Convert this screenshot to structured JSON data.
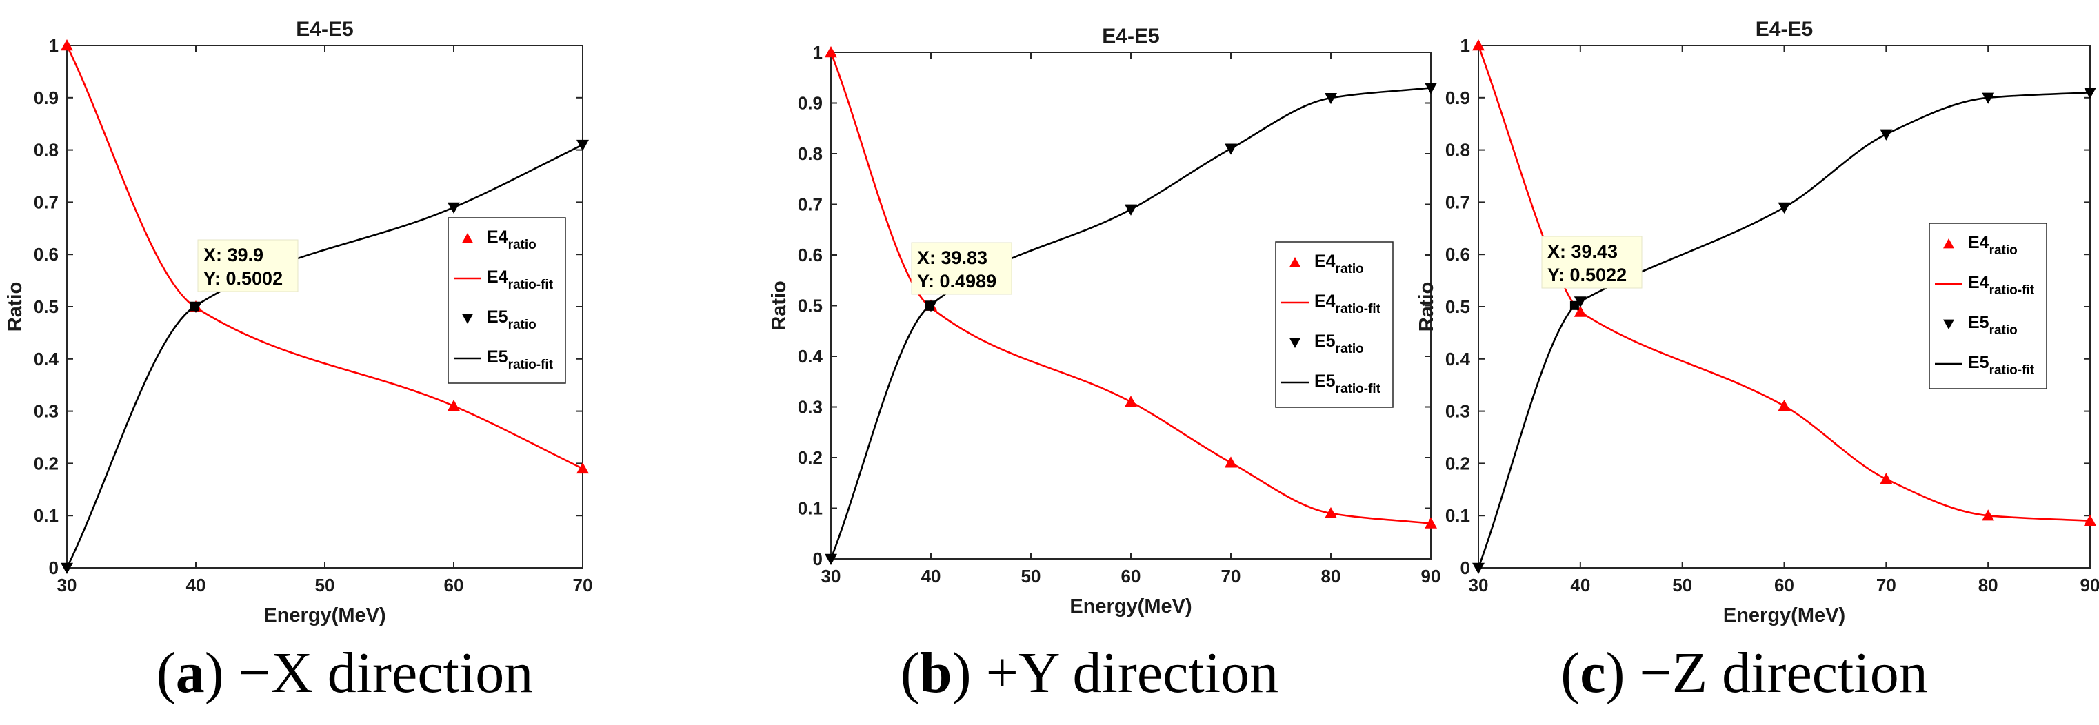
{
  "colors": {
    "e4": "#ff0000",
    "e5": "#000000",
    "tooltip_bg": "#ffffe1"
  },
  "legend": [
    {
      "base": "E4",
      "sub": "ratio",
      "kind": "marker",
      "series": "e4"
    },
    {
      "base": "E4",
      "sub": "ratio-fit",
      "kind": "line",
      "series": "e4"
    },
    {
      "base": "E5",
      "sub": "ratio",
      "kind": "marker",
      "series": "e5"
    },
    {
      "base": "E5",
      "sub": "ratio-fit",
      "kind": "line",
      "series": "e5"
    }
  ],
  "captions": [
    {
      "letter": "a",
      "text": " −X direction"
    },
    {
      "letter": "b",
      "text": " +Y direction"
    },
    {
      "letter": "c",
      "text": " −Z direction"
    }
  ],
  "chart_data": [
    {
      "type": "line",
      "title": "E4-E5",
      "xlabel": "Energy(MeV)",
      "ylabel": "Ratio",
      "xlim": [
        30,
        70
      ],
      "ylim": [
        0,
        1
      ],
      "xticks": [
        30,
        40,
        50,
        60,
        70
      ],
      "yticks": [
        0,
        0.1,
        0.2,
        0.3,
        0.4,
        0.5,
        0.6,
        0.7,
        0.8,
        0.9,
        1
      ],
      "x": [
        30,
        40,
        60,
        70
      ],
      "series": [
        {
          "name": "E4",
          "values": [
            1.0,
            0.5,
            0.31,
            0.19
          ]
        },
        {
          "name": "E5",
          "values": [
            0.0,
            0.5,
            0.69,
            0.81
          ]
        }
      ],
      "crossing": {
        "x_label": "X: 39.9",
        "y_label": "Y: 0.5002",
        "x": 39.9,
        "y": 0.5002
      },
      "grid": false,
      "legend_position": "right"
    },
    {
      "type": "line",
      "title": "E4-E5",
      "xlabel": "Energy(MeV)",
      "ylabel": "Ratio",
      "xlim": [
        30,
        90
      ],
      "ylim": [
        0,
        1
      ],
      "xticks": [
        30,
        40,
        50,
        60,
        70,
        80,
        90
      ],
      "yticks": [
        0,
        0.1,
        0.2,
        0.3,
        0.4,
        0.5,
        0.6,
        0.7,
        0.8,
        0.9,
        1
      ],
      "x": [
        30,
        40,
        60,
        70,
        80,
        90
      ],
      "series": [
        {
          "name": "E4",
          "values": [
            1.0,
            0.5,
            0.31,
            0.19,
            0.09,
            0.07
          ]
        },
        {
          "name": "E5",
          "values": [
            0.0,
            0.5,
            0.69,
            0.81,
            0.91,
            0.93
          ]
        }
      ],
      "crossing": {
        "x_label": "X: 39.83",
        "y_label": "Y: 0.4989",
        "x": 39.83,
        "y": 0.4989
      },
      "grid": false,
      "legend_position": "right"
    },
    {
      "type": "line",
      "title": "E4-E5",
      "xlabel": "Energy(MeV)",
      "ylabel": "Ratio",
      "xlim": [
        30,
        90
      ],
      "ylim": [
        0,
        1
      ],
      "xticks": [
        30,
        40,
        50,
        60,
        70,
        80,
        90
      ],
      "yticks": [
        0,
        0.1,
        0.2,
        0.3,
        0.4,
        0.5,
        0.6,
        0.7,
        0.8,
        0.9,
        1
      ],
      "x": [
        30,
        40,
        60,
        70,
        80,
        90
      ],
      "series": [
        {
          "name": "E4",
          "values": [
            1.0,
            0.49,
            0.31,
            0.17,
            0.1,
            0.09
          ]
        },
        {
          "name": "E5",
          "values": [
            0.0,
            0.51,
            0.69,
            0.83,
            0.9,
            0.91
          ]
        }
      ],
      "crossing": {
        "x_label": "X: 39.43",
        "y_label": "Y: 0.5022",
        "x": 39.43,
        "y": 0.5022
      },
      "grid": false,
      "legend_position": "right"
    }
  ]
}
